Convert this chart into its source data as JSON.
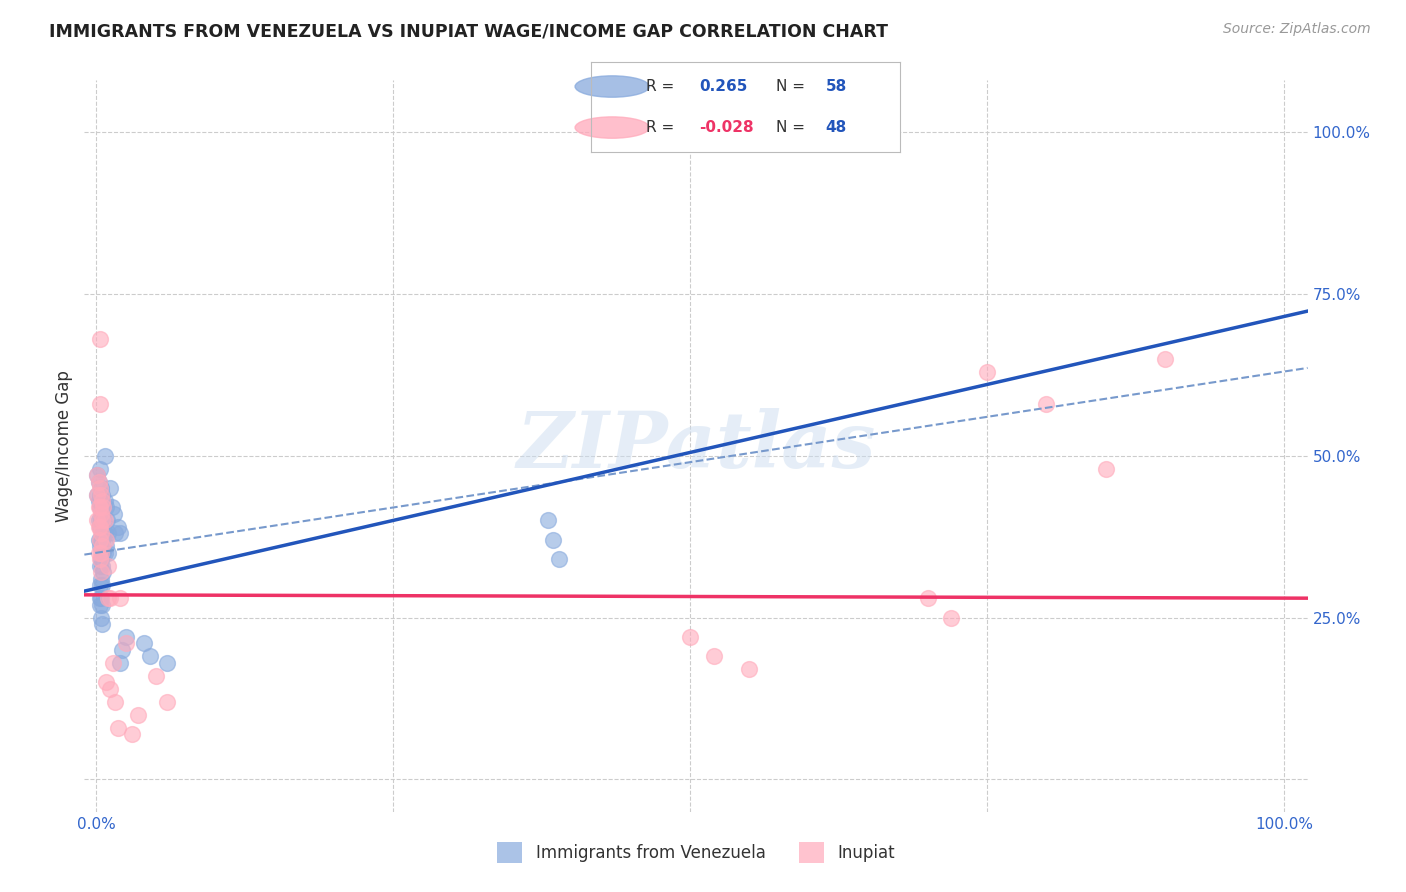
{
  "title": "IMMIGRANTS FROM VENEZUELA VS INUPIAT WAGE/INCOME GAP CORRELATION CHART",
  "source": "Source: ZipAtlas.com",
  "ylabel": "Wage/Income Gap",
  "xlim": [
    -0.01,
    1.02
  ],
  "ylim": [
    -0.05,
    1.08
  ],
  "background_color": "#FFFFFF",
  "grid_color": "#CCCCCC",
  "watermark_text": "ZIPatlas",
  "series1_label": "Immigrants from Venezuela",
  "series1_color": "#88AADD",
  "series1_line_color": "#2255BB",
  "series2_label": "Inupiat",
  "series2_color": "#FFAABB",
  "series2_line_color": "#EE3366",
  "legend_R1": "0.265",
  "legend_N1": "58",
  "legend_R2": "-0.028",
  "legend_N2": "48",
  "blue_scatter": [
    [
      0.001,
      0.47
    ],
    [
      0.001,
      0.44
    ],
    [
      0.002,
      0.46
    ],
    [
      0.002,
      0.43
    ],
    [
      0.002,
      0.4
    ],
    [
      0.002,
      0.37
    ],
    [
      0.003,
      0.48
    ],
    [
      0.003,
      0.44
    ],
    [
      0.003,
      0.42
    ],
    [
      0.003,
      0.39
    ],
    [
      0.003,
      0.36
    ],
    [
      0.003,
      0.33
    ],
    [
      0.003,
      0.3
    ],
    [
      0.003,
      0.28
    ],
    [
      0.003,
      0.27
    ],
    [
      0.004,
      0.45
    ],
    [
      0.004,
      0.43
    ],
    [
      0.004,
      0.4
    ],
    [
      0.004,
      0.37
    ],
    [
      0.004,
      0.34
    ],
    [
      0.004,
      0.31
    ],
    [
      0.004,
      0.28
    ],
    [
      0.004,
      0.25
    ],
    [
      0.005,
      0.44
    ],
    [
      0.005,
      0.4
    ],
    [
      0.005,
      0.37
    ],
    [
      0.005,
      0.33
    ],
    [
      0.005,
      0.3
    ],
    [
      0.005,
      0.27
    ],
    [
      0.005,
      0.24
    ],
    [
      0.006,
      0.42
    ],
    [
      0.006,
      0.38
    ],
    [
      0.006,
      0.35
    ],
    [
      0.006,
      0.32
    ],
    [
      0.007,
      0.5
    ],
    [
      0.007,
      0.43
    ],
    [
      0.007,
      0.38
    ],
    [
      0.007,
      0.35
    ],
    [
      0.008,
      0.42
    ],
    [
      0.008,
      0.36
    ],
    [
      0.009,
      0.4
    ],
    [
      0.01,
      0.38
    ],
    [
      0.01,
      0.35
    ],
    [
      0.012,
      0.45
    ],
    [
      0.013,
      0.42
    ],
    [
      0.015,
      0.41
    ],
    [
      0.016,
      0.38
    ],
    [
      0.018,
      0.39
    ],
    [
      0.02,
      0.38
    ],
    [
      0.02,
      0.18
    ],
    [
      0.022,
      0.2
    ],
    [
      0.025,
      0.22
    ],
    [
      0.04,
      0.21
    ],
    [
      0.045,
      0.19
    ],
    [
      0.06,
      0.18
    ],
    [
      0.38,
      0.4
    ],
    [
      0.385,
      0.37
    ],
    [
      0.39,
      0.34
    ]
  ],
  "pink_scatter": [
    [
      0.001,
      0.47
    ],
    [
      0.001,
      0.44
    ],
    [
      0.001,
      0.4
    ],
    [
      0.002,
      0.46
    ],
    [
      0.002,
      0.42
    ],
    [
      0.002,
      0.39
    ],
    [
      0.002,
      0.35
    ],
    [
      0.003,
      0.58
    ],
    [
      0.003,
      0.45
    ],
    [
      0.003,
      0.42
    ],
    [
      0.003,
      0.39
    ],
    [
      0.003,
      0.37
    ],
    [
      0.003,
      0.34
    ],
    [
      0.004,
      0.44
    ],
    [
      0.004,
      0.41
    ],
    [
      0.004,
      0.38
    ],
    [
      0.004,
      0.35
    ],
    [
      0.004,
      0.32
    ],
    [
      0.005,
      0.43
    ],
    [
      0.005,
      0.4
    ],
    [
      0.005,
      0.36
    ],
    [
      0.006,
      0.42
    ],
    [
      0.007,
      0.4
    ],
    [
      0.008,
      0.37
    ],
    [
      0.008,
      0.15
    ],
    [
      0.01,
      0.33
    ],
    [
      0.01,
      0.28
    ],
    [
      0.012,
      0.28
    ],
    [
      0.012,
      0.14
    ],
    [
      0.014,
      0.18
    ],
    [
      0.016,
      0.12
    ],
    [
      0.018,
      0.08
    ],
    [
      0.02,
      0.28
    ],
    [
      0.025,
      0.21
    ],
    [
      0.03,
      0.07
    ],
    [
      0.035,
      0.1
    ],
    [
      0.05,
      0.16
    ],
    [
      0.06,
      0.12
    ],
    [
      0.003,
      0.68
    ],
    [
      0.5,
      0.22
    ],
    [
      0.52,
      0.19
    ],
    [
      0.55,
      0.17
    ],
    [
      0.7,
      0.28
    ],
    [
      0.72,
      0.25
    ],
    [
      0.75,
      0.63
    ],
    [
      0.8,
      0.58
    ],
    [
      0.85,
      0.48
    ],
    [
      0.9,
      0.65
    ]
  ],
  "dash_line_x": [
    0.0,
    1.0
  ],
  "dash_line_y": [
    0.35,
    0.63
  ]
}
